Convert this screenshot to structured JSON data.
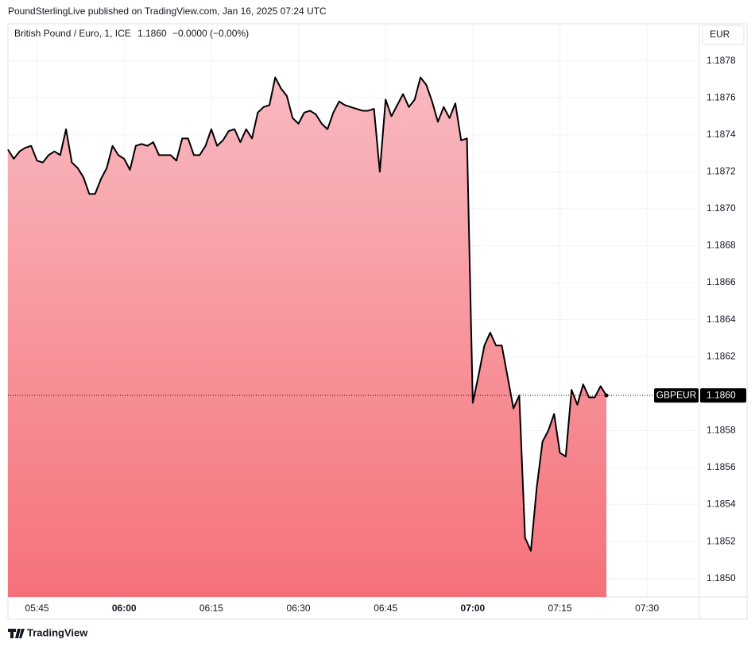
{
  "header": "PoundSterlingLive published on TradingView.com, Jan 16, 2025 07:24 UTC",
  "footer": "TradingView",
  "chart_data": {
    "type": "area",
    "legend": {
      "symbol": "British Pound / Euro, 1, ICE",
      "last": "1.1860",
      "change": "−0.0000 (−0.00%)"
    },
    "currency": "EUR",
    "price_tag": {
      "name": "GBPEUR",
      "label": "1.1860"
    },
    "line_color": "#000000",
    "fill_top": "#f9b9c0",
    "fill_bottom": "#f57179",
    "grid": true,
    "x": [
      "05:40",
      "05:41",
      "05:42",
      "05:43",
      "05:44",
      "05:45",
      "05:46",
      "05:47",
      "05:48",
      "05:49",
      "05:50",
      "05:51",
      "05:52",
      "05:53",
      "05:54",
      "05:55",
      "05:56",
      "05:57",
      "05:58",
      "05:59",
      "06:00",
      "06:01",
      "06:02",
      "06:03",
      "06:04",
      "06:05",
      "06:06",
      "06:07",
      "06:08",
      "06:09",
      "06:10",
      "06:11",
      "06:12",
      "06:13",
      "06:14",
      "06:15",
      "06:16",
      "06:17",
      "06:18",
      "06:19",
      "06:20",
      "06:21",
      "06:22",
      "06:23",
      "06:24",
      "06:25",
      "06:26",
      "06:27",
      "06:28",
      "06:29",
      "06:30",
      "06:31",
      "06:32",
      "06:33",
      "06:34",
      "06:35",
      "06:36",
      "06:37",
      "06:38",
      "06:39",
      "06:40",
      "06:41",
      "06:42",
      "06:43",
      "06:44",
      "06:45",
      "06:46",
      "06:47",
      "06:48",
      "06:49",
      "06:50",
      "06:51",
      "06:52",
      "06:53",
      "06:54",
      "06:55",
      "06:56",
      "06:57",
      "06:58",
      "06:59",
      "07:00",
      "07:01",
      "07:02",
      "07:03",
      "07:04",
      "07:05",
      "07:06",
      "07:07",
      "07:08",
      "07:09",
      "07:10",
      "07:11",
      "07:12",
      "07:13",
      "07:14",
      "07:15",
      "07:16",
      "07:17",
      "07:18",
      "07:19",
      "07:20",
      "07:21",
      "07:22",
      "07:23"
    ],
    "values": [
      1.18732,
      1.18727,
      1.18731,
      1.18733,
      1.18734,
      1.18726,
      1.18725,
      1.18729,
      1.18731,
      1.18729,
      1.18743,
      1.18725,
      1.18722,
      1.18717,
      1.18708,
      1.18708,
      1.18716,
      1.18722,
      1.18734,
      1.18729,
      1.18727,
      1.18721,
      1.18734,
      1.18735,
      1.18734,
      1.18736,
      1.18729,
      1.18729,
      1.18729,
      1.18726,
      1.18738,
      1.18738,
      1.18729,
      1.18729,
      1.18734,
      1.18743,
      1.18734,
      1.18737,
      1.18742,
      1.18743,
      1.18736,
      1.18743,
      1.18738,
      1.18752,
      1.18755,
      1.18756,
      1.18771,
      1.18765,
      1.18761,
      1.18749,
      1.18746,
      1.18752,
      1.18753,
      1.18751,
      1.18746,
      1.18743,
      1.18752,
      1.18758,
      1.18756,
      1.18755,
      1.18754,
      1.18753,
      1.18753,
      1.18754,
      1.1872,
      1.18759,
      1.1875,
      1.18756,
      1.18762,
      1.18755,
      1.18759,
      1.18771,
      1.18767,
      1.18758,
      1.18747,
      1.18755,
      1.18749,
      1.18757,
      1.18737,
      1.18738,
      1.18595,
      1.1861,
      1.18626,
      1.18633,
      1.18626,
      1.18626,
      1.18609,
      1.18592,
      1.18599,
      1.18522,
      1.18515,
      1.18549,
      1.18574,
      1.1858,
      1.18589,
      1.18568,
      1.18566,
      1.18602,
      1.18594,
      1.18605,
      1.18598,
      1.18598,
      1.18604,
      1.18599
    ],
    "xlim": [
      "05:40",
      "07:39"
    ],
    "xticks": [
      "05:45",
      "06:00",
      "06:15",
      "06:30",
      "06:45",
      "07:00",
      "07:15",
      "07:30"
    ],
    "ylim": [
      1.1849,
      1.188
    ],
    "yticks": [
      {
        "value": 1.185,
        "label": "1.1850"
      },
      1.1852,
      1.1854,
      1.1856,
      1.1858,
      {
        "value": 1.186,
        "label": "1.1860"
      },
      1.1862,
      1.1864,
      1.1866,
      1.1868,
      {
        "value": 1.187,
        "label": "1.1870"
      },
      1.1872,
      1.1874,
      1.1876,
      1.1878
    ]
  }
}
